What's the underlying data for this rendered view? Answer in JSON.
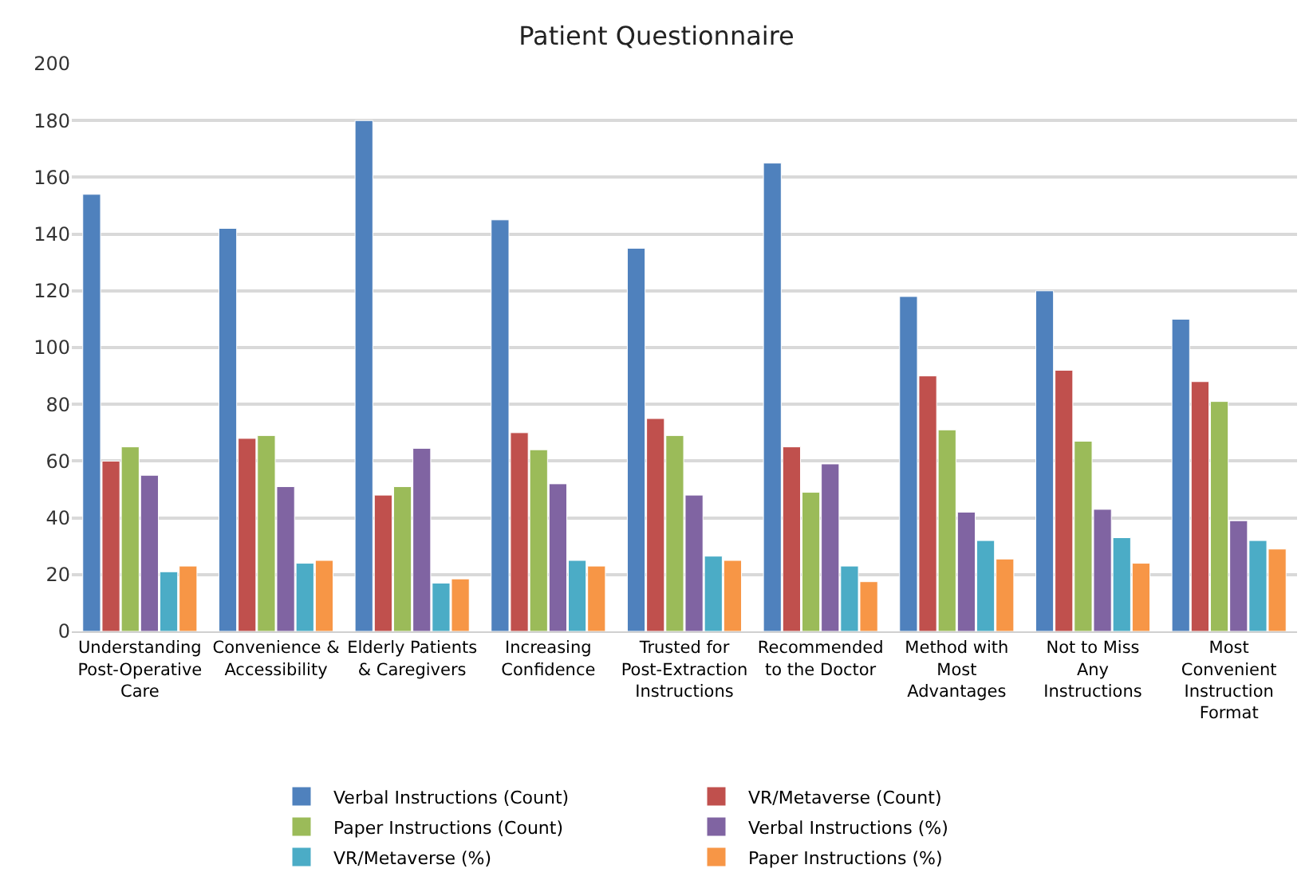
{
  "chart_data": {
    "type": "bar",
    "title": "Patient Questionnaire",
    "categories": [
      "Understanding\nPost-Operative\nCare",
      "Convenience &\nAccessibility",
      "Elderly Patients\n& Caregivers",
      "Increasing\nConfidence",
      "Trusted for\nPost-Extraction\nInstructions",
      "Recommended\nto the Doctor",
      "Method with\nMost\nAdvantages",
      "Not to Miss\nAny\nInstructions",
      "Most\nConvenient\nInstruction\nFormat"
    ],
    "series": [
      {
        "name": "Verbal Instructions (Count)",
        "color": "#4f81bd",
        "values": [
          154,
          142,
          180,
          145,
          135,
          165,
          118,
          120,
          110
        ]
      },
      {
        "name": "VR/Metaverse (Count)",
        "color": "#c0504d",
        "values": [
          60,
          68,
          48,
          70,
          75,
          65,
          90,
          92,
          88
        ]
      },
      {
        "name": "Paper Instructions (Count)",
        "color": "#9bbb59",
        "values": [
          65,
          69,
          51,
          64,
          69,
          49,
          71,
          67,
          81
        ]
      },
      {
        "name": "Verbal Instructions (%)",
        "color": "#8064a2",
        "values": [
          55,
          51,
          64.5,
          52,
          48,
          59,
          42,
          43,
          39
        ]
      },
      {
        "name": "VR/Metaverse (%)",
        "color": "#4bacc6",
        "values": [
          21,
          24,
          17,
          25,
          26.5,
          23,
          32,
          33,
          32
        ]
      },
      {
        "name": "Paper Instructions (%)",
        "color": "#f79646",
        "values": [
          23,
          25,
          18.5,
          23,
          25,
          17.5,
          25.5,
          24,
          29
        ]
      }
    ],
    "ylim": [
      0,
      200
    ],
    "yticks": [
      0,
      20,
      40,
      60,
      80,
      100,
      120,
      140,
      160,
      180,
      200
    ],
    "grid": "y",
    "legend": "bottom"
  }
}
